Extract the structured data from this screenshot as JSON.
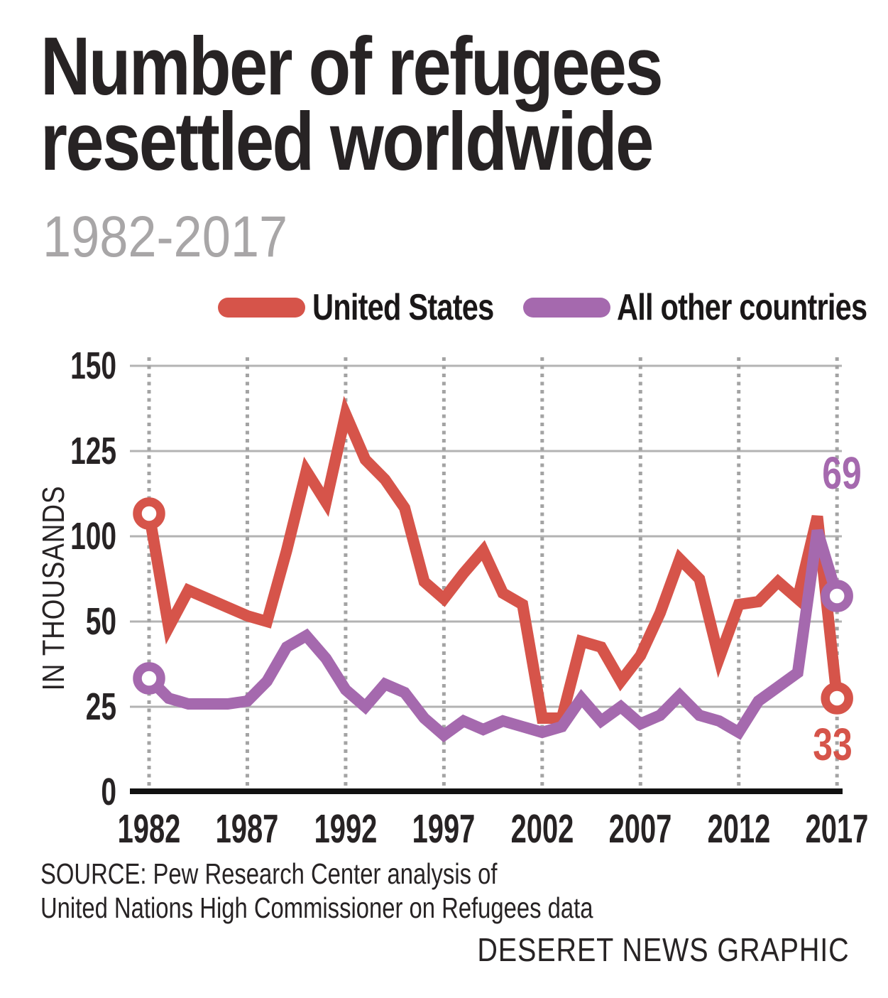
{
  "title": {
    "line1": "Number of refugees",
    "line2": "resettled worldwide"
  },
  "subtitle": "1982-2017",
  "legend": [
    {
      "label": "United States",
      "color": "#d6544a"
    },
    {
      "label": "All other countries",
      "color": "#a569ae"
    }
  ],
  "y_axis": {
    "title": "IN THOUSANDS",
    "tick_labels": [
      "150",
      "125",
      "100",
      "50",
      "25",
      "0"
    ]
  },
  "x_axis": {
    "tick_labels": [
      "1982",
      "1987",
      "1992",
      "1997",
      "2002",
      "2007",
      "2012",
      "2017"
    ]
  },
  "annotations": [
    {
      "text": "69",
      "series": "All other countries",
      "color": "#a569ae"
    },
    {
      "text": "33",
      "series": "United States",
      "color": "#d6544a"
    }
  ],
  "source": {
    "line1": "SOURCE: Pew Research Center analysis of",
    "line2": "United Nations High Commissioner on Refugees data"
  },
  "credit": "DESERET NEWS GRAPHIC",
  "chart_data": {
    "type": "line",
    "title": "Number of refugees resettled worldwide, 1982-2017",
    "ylabel": "IN THOUSANDS",
    "x": [
      1982,
      1983,
      1984,
      1985,
      1986,
      1987,
      1988,
      1989,
      1990,
      1991,
      1992,
      1993,
      1994,
      1995,
      1996,
      1997,
      1998,
      1999,
      2000,
      2001,
      2002,
      2003,
      2004,
      2005,
      2006,
      2007,
      2008,
      2009,
      2010,
      2011,
      2012,
      2013,
      2014,
      2015,
      2016,
      2017
    ],
    "series": [
      {
        "name": "United States",
        "color": "#d6544a",
        "values": [
          98,
          58,
          71,
          68,
          65,
          62,
          60,
          85,
          113,
          102,
          133,
          117,
          110,
          100,
          74,
          68,
          77,
          85,
          70,
          66,
          26,
          26,
          53,
          51,
          39,
          48,
          63,
          82,
          75,
          47,
          66,
          67,
          74,
          68,
          97,
          33
        ],
        "end_label": "33"
      },
      {
        "name": "All other countries",
        "color": "#a569ae",
        "values": [
          40,
          33,
          31,
          31,
          31,
          32,
          39,
          51,
          55,
          47,
          36,
          30,
          38,
          35,
          26,
          20,
          25,
          22,
          25,
          23,
          21,
          23,
          33,
          25,
          30,
          24,
          27,
          34,
          27,
          25,
          21,
          32,
          37,
          42,
          92,
          69
        ],
        "end_label": "69"
      }
    ],
    "units": "thousands",
    "ylim": [
      0,
      150
    ],
    "y_gridline_values": [
      150,
      125,
      100,
      50,
      25,
      0
    ],
    "y_axis_note": "Gridlines are equally spaced but labeled 0, 25, 50, 100, 125, 150 (75 omitted); lines are plotted on a linear 0-150 scale",
    "grid": true,
    "legend_position": "top"
  }
}
